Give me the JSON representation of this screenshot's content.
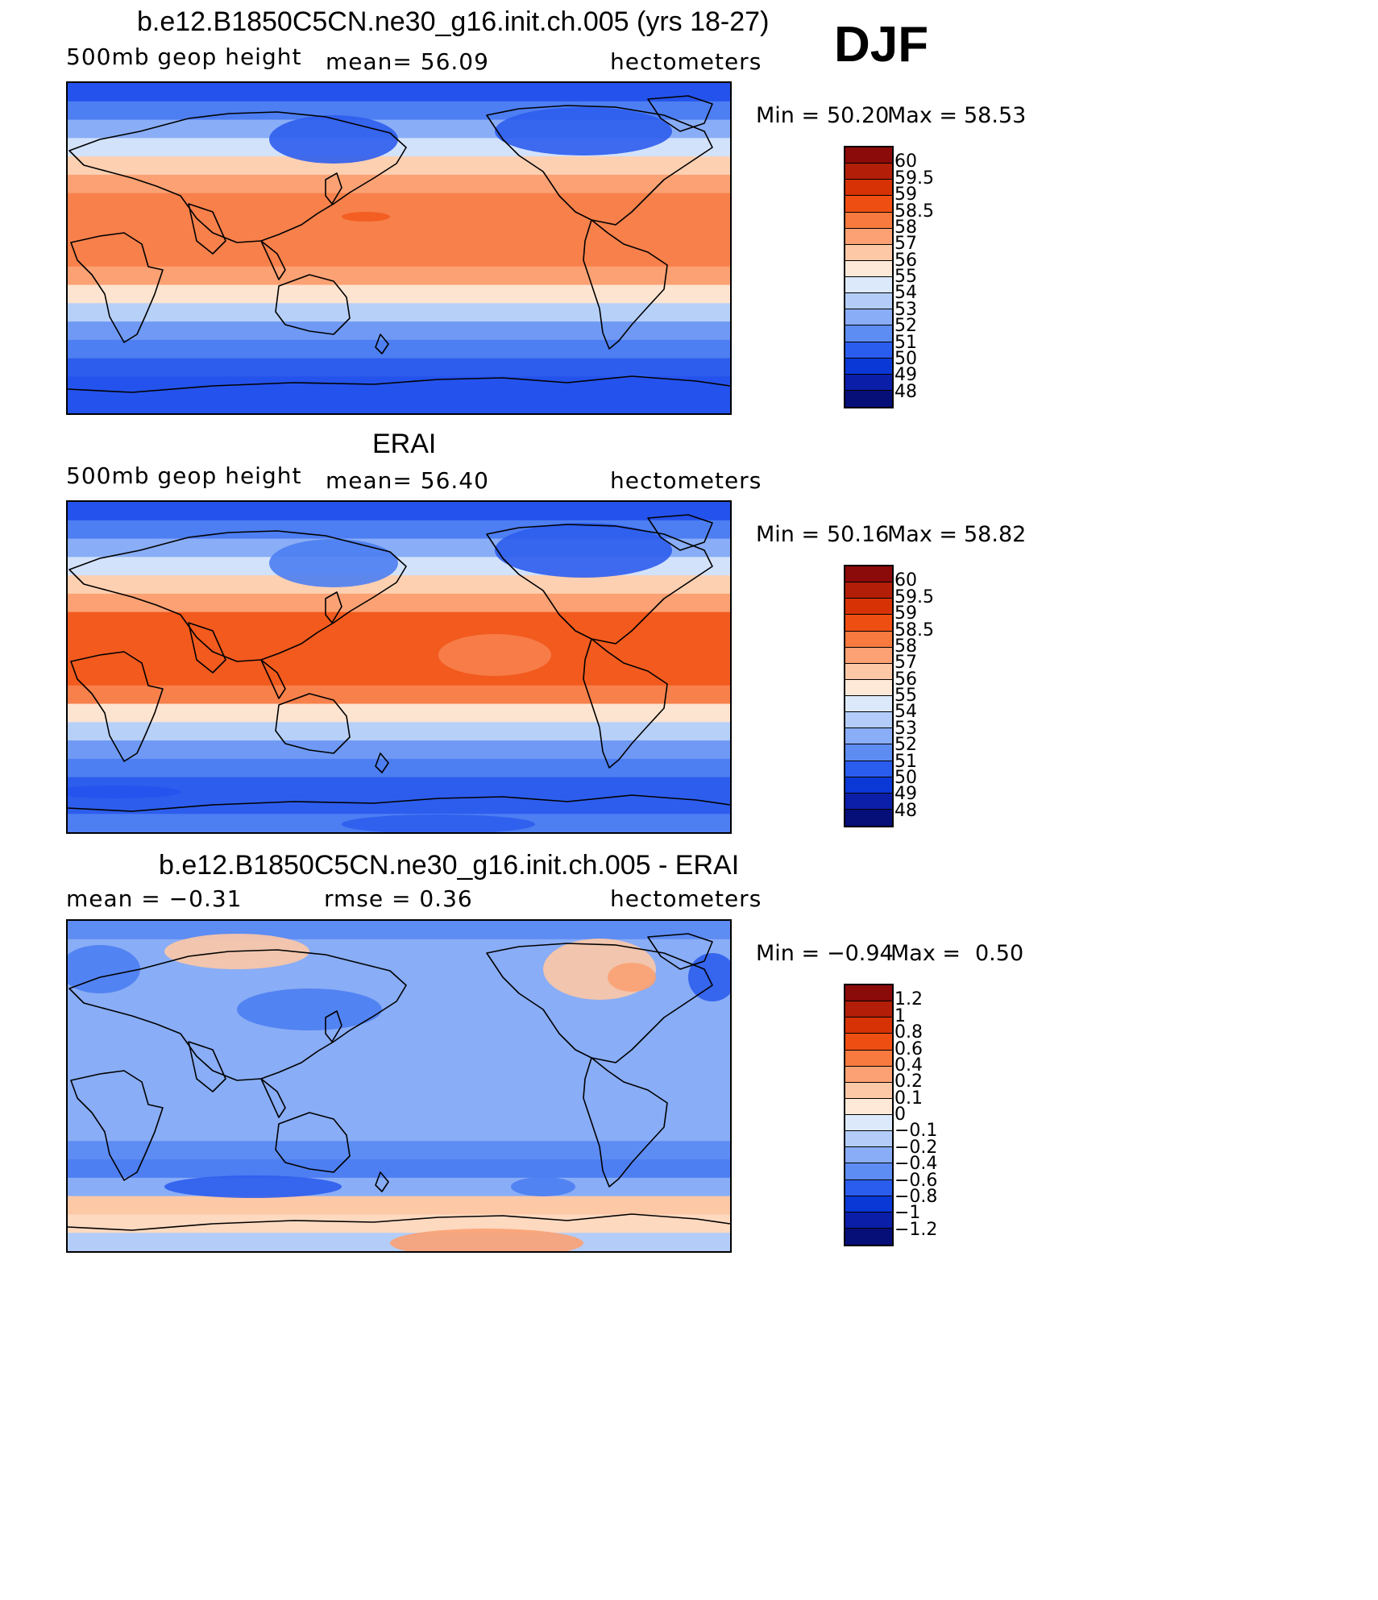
{
  "season": "DJF",
  "panels": [
    {
      "title": "b.e12.B1850C5CN.ne30_g16.init.ch.005 (yrs 18-27)",
      "left_label": "500mb  geop  height",
      "center_label": "mean=   56.09",
      "right_label": "hectometers",
      "min_label": "Min  =",
      "min_value": "50.20",
      "max_label": "Max  =",
      "max_value": "58.53",
      "colorbar_labels": [
        "60",
        "59.5",
        "59",
        "58.5",
        "58",
        "57",
        "56",
        "55",
        "54",
        "53",
        "52",
        "51",
        "50",
        "49",
        "48"
      ],
      "colorbar_colors": [
        "#8b0a0a",
        "#b21e08",
        "#d63205",
        "#ef4e12",
        "#f97a3e",
        "#fba173",
        "#fdc8a6",
        "#fee9d8",
        "#dbe9fb",
        "#b3cdf8",
        "#89adf6",
        "#5d8cf3",
        "#2a5cee",
        "#0a38d6",
        "#0a1ea8",
        "#060e78"
      ],
      "map_bands": [
        "#2452ec",
        "#4d7ef2",
        "#89adf6",
        "#d2e2fb",
        "#fdd0b2",
        "#fba173",
        "#f7804b",
        "#f7804b",
        "#f7804b",
        "#f7804b",
        "#fba173",
        "#fde4d0",
        "#b7d0f8",
        "#6f99f4",
        "#4d7ef2",
        "#2d5ded",
        "#2452ec",
        "#2452ec"
      ]
    },
    {
      "title": "ERAI",
      "left_label": "500mb  geop  height",
      "center_label": "mean=   56.40",
      "right_label": "hectometers",
      "min_label": "Min  =",
      "min_value": "50.16",
      "max_label": "Max  =",
      "max_value": "58.82",
      "colorbar_labels": [
        "60",
        "59.5",
        "59",
        "58.5",
        "58",
        "57",
        "56",
        "55",
        "54",
        "53",
        "52",
        "51",
        "50",
        "49",
        "48"
      ],
      "colorbar_colors": [
        "#8b0a0a",
        "#b21e08",
        "#d63205",
        "#ef4e12",
        "#f97a3e",
        "#fba173",
        "#fdc8a6",
        "#fee9d8",
        "#dbe9fb",
        "#b3cdf8",
        "#89adf6",
        "#5d8cf3",
        "#2a5cee",
        "#0a38d6",
        "#0a1ea8",
        "#060e78"
      ],
      "map_bands": [
        "#2452ec",
        "#4d7ef2",
        "#89adf6",
        "#d2e2fb",
        "#fdd0b2",
        "#fba173",
        "#f25a1e",
        "#f25a1e",
        "#f25a1e",
        "#f25a1e",
        "#f7804b",
        "#fde4d0",
        "#b7d0f8",
        "#6f99f4",
        "#4d7ef2",
        "#2d5ded",
        "#2d5ded",
        "#4d7ef2"
      ]
    },
    {
      "title": "b.e12.B1850C5CN.ne30_g16.init.ch.005 - ERAI",
      "left_label": "mean  =    −0.31",
      "center_label": "rmse  =     0.36",
      "right_label": "hectometers",
      "min_label": "Min  =",
      "min_value": "−0.94",
      "max_label": "Max  =",
      "max_value": "0.50",
      "colorbar_labels": [
        "1.2",
        "1",
        "0.8",
        "0.6",
        "0.4",
        "0.2",
        "0.1",
        "0",
        "−0.1",
        "−0.2",
        "−0.4",
        "−0.6",
        "−0.8",
        "−1",
        "−1.2"
      ],
      "colorbar_colors": [
        "#8b0a0a",
        "#b21e08",
        "#d63205",
        "#ef4e12",
        "#f97a3e",
        "#fba173",
        "#fdc8a6",
        "#fee9d8",
        "#dbe9fb",
        "#b3cdf8",
        "#89adf6",
        "#5d8cf3",
        "#2a5cee",
        "#0a38d6",
        "#0a1ea8",
        "#060e78"
      ],
      "map_bands": [
        "#5d8cf3",
        "#89adf6",
        "#89adf6",
        "#89adf6",
        "#89adf6",
        "#89adf6",
        "#89adf6",
        "#89adf6",
        "#89adf6",
        "#89adf6",
        "#89adf6",
        "#89adf6",
        "#5d8cf3",
        "#4d7ef2",
        "#89adf6",
        "#fdc8a6",
        "#fdd9c0",
        "#b3cdf8"
      ]
    }
  ]
}
